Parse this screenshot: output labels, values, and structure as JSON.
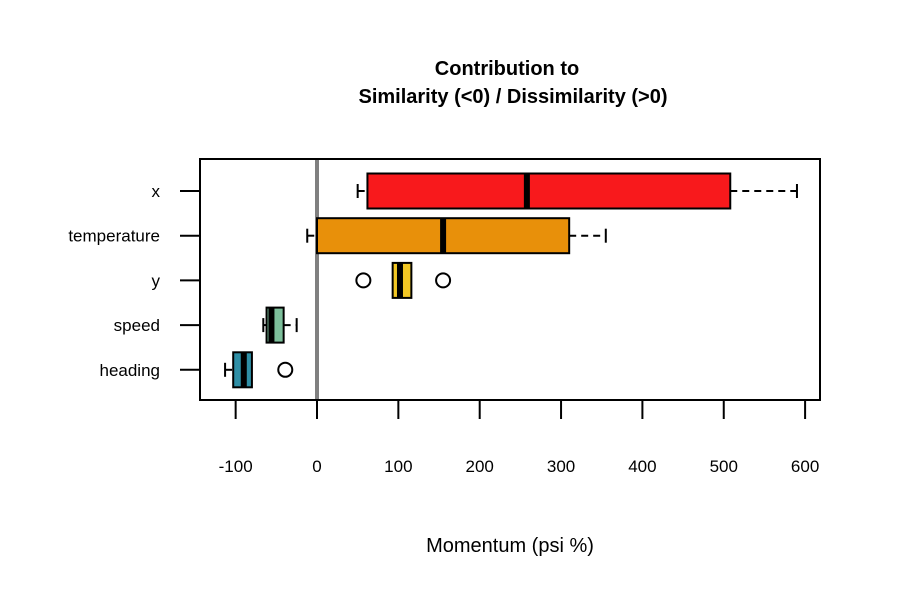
{
  "chart_data": {
    "type": "boxplot",
    "orientation": "horizontal",
    "title_lines": [
      "Contribution to",
      "Similarity (<0) / Dissimilarity (>0)"
    ],
    "xlabel": "Momentum (psi %)",
    "ylabel": "",
    "xlim": [
      -140,
      620
    ],
    "x_ticks": [
      -100,
      0,
      100,
      200,
      300,
      400,
      500,
      600
    ],
    "x_tick_labels": [
      "-100",
      "0",
      "100",
      "200",
      "300",
      "400",
      "500",
      "600"
    ],
    "reference_line": {
      "x": 0,
      "color": "#808080"
    },
    "grid": false,
    "legend": "none",
    "categories": [
      "x",
      "temperature",
      "y",
      "speed",
      "heading"
    ],
    "series": [
      {
        "category": "x",
        "color": "#f8191c",
        "whisker_low": 50,
        "q1": 62,
        "median": 258,
        "q3": 508,
        "whisker_high": 590,
        "outliers": []
      },
      {
        "category": "temperature",
        "color": "#e8900a",
        "whisker_low": -12,
        "q1": 0,
        "median": 155,
        "q3": 310,
        "whisker_high": 355,
        "outliers": []
      },
      {
        "category": "y",
        "color": "#f2c724",
        "whisker_low": 93,
        "q1": 93,
        "median": 102,
        "q3": 116,
        "whisker_high": 116,
        "outliers": [
          57,
          155
        ]
      },
      {
        "category": "speed",
        "color": "#7dbf9b",
        "whisker_low": -66,
        "q1": -62,
        "median": -56,
        "q3": -41,
        "whisker_high": -25,
        "outliers": []
      },
      {
        "category": "heading",
        "color": "#2f8fa6",
        "whisker_low": -113,
        "q1": -103,
        "median": -90,
        "q3": -80,
        "whisker_high": -80,
        "outliers": [
          -39
        ]
      }
    ]
  }
}
